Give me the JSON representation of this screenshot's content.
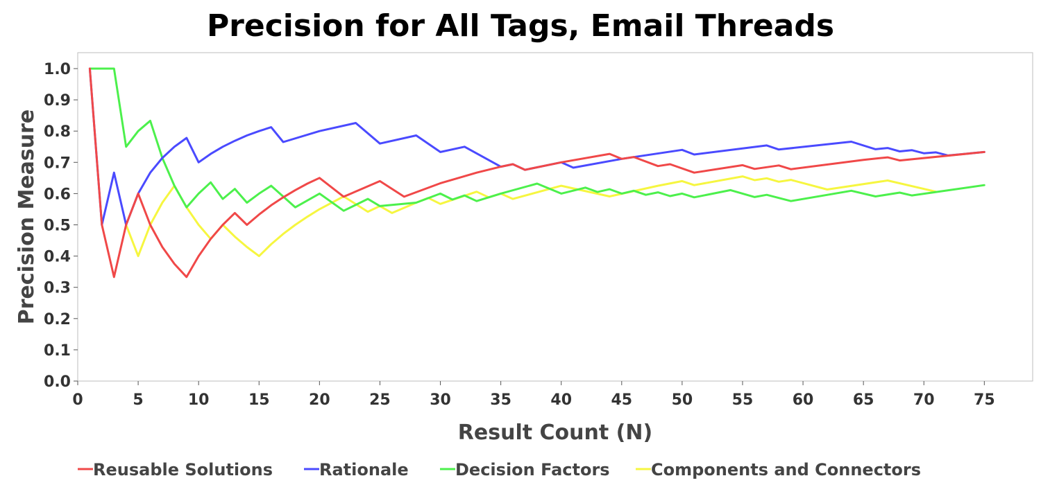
{
  "chart_data": {
    "type": "line",
    "title": "Precision for All Tags, Email Threads",
    "xlabel": "Result Count (N)",
    "ylabel": "Precision Measure",
    "xlim": [
      0,
      79
    ],
    "ylim": [
      0,
      1.0
    ],
    "xticks": [
      0,
      5,
      10,
      15,
      20,
      25,
      30,
      35,
      40,
      45,
      50,
      55,
      60,
      65,
      70,
      75
    ],
    "yticks": [
      0.0,
      0.1,
      0.2,
      0.3,
      0.4,
      0.5,
      0.6,
      0.7,
      0.8,
      0.9,
      1.0
    ],
    "grid": false,
    "legend_position": "bottom",
    "series": [
      {
        "name": "Reusable Solutions",
        "color": "#f04848",
        "points": [
          [
            1,
            1.0
          ],
          [
            2,
            0.5
          ],
          [
            3,
            0.333
          ],
          [
            4,
            0.5
          ],
          [
            5,
            0.6
          ],
          [
            6,
            0.5
          ],
          [
            7,
            0.429
          ],
          [
            8,
            0.375
          ],
          [
            9,
            0.333
          ],
          [
            10,
            0.4
          ],
          [
            11,
            0.455
          ],
          [
            12,
            0.5
          ],
          [
            13,
            0.538
          ],
          [
            14,
            0.5
          ],
          [
            15,
            0.533
          ],
          [
            16,
            0.5625
          ],
          [
            17,
            0.588
          ],
          [
            18,
            0.611
          ],
          [
            19,
            0.632
          ],
          [
            20,
            0.65
          ],
          [
            22,
            0.59
          ],
          [
            25,
            0.64
          ],
          [
            27,
            0.59
          ],
          [
            30,
            0.633
          ],
          [
            33,
            0.667
          ],
          [
            35,
            0.686
          ],
          [
            36,
            0.694
          ],
          [
            37,
            0.676
          ],
          [
            40,
            0.7
          ],
          [
            44,
            0.727
          ],
          [
            45,
            0.711
          ],
          [
            46,
            0.717
          ],
          [
            48,
            0.688
          ],
          [
            49,
            0.694
          ],
          [
            51,
            0.667
          ],
          [
            55,
            0.691
          ],
          [
            56,
            0.679
          ],
          [
            58,
            0.69
          ],
          [
            59,
            0.678
          ],
          [
            65,
            0.708
          ],
          [
            67,
            0.716
          ],
          [
            68,
            0.706
          ],
          [
            75,
            0.733
          ]
        ]
      },
      {
        "name": "Rationale",
        "color": "#4a4aff",
        "points": [
          [
            1,
            1.0
          ],
          [
            2,
            0.5
          ],
          [
            3,
            0.667
          ],
          [
            4,
            0.5
          ],
          [
            5,
            0.6
          ],
          [
            6,
            0.667
          ],
          [
            7,
            0.714
          ],
          [
            8,
            0.75
          ],
          [
            9,
            0.778
          ],
          [
            10,
            0.7
          ],
          [
            11,
            0.727
          ],
          [
            12,
            0.75
          ],
          [
            13,
            0.769
          ],
          [
            14,
            0.786
          ],
          [
            15,
            0.8
          ],
          [
            16,
            0.8125
          ],
          [
            17,
            0.765
          ],
          [
            20,
            0.8
          ],
          [
            23,
            0.826
          ],
          [
            25,
            0.76
          ],
          [
            28,
            0.786
          ],
          [
            30,
            0.733
          ],
          [
            32,
            0.75
          ],
          [
            35,
            0.686
          ],
          [
            36,
            0.694
          ],
          [
            37,
            0.676
          ],
          [
            40,
            0.7
          ],
          [
            41,
            0.683
          ],
          [
            45,
            0.711
          ],
          [
            50,
            0.74
          ],
          [
            51,
            0.725
          ],
          [
            57,
            0.754
          ],
          [
            58,
            0.741
          ],
          [
            64,
            0.766
          ],
          [
            66,
            0.742
          ],
          [
            67,
            0.746
          ],
          [
            68,
            0.735
          ],
          [
            69,
            0.739
          ],
          [
            70,
            0.729
          ],
          [
            71,
            0.732
          ],
          [
            72,
            0.722
          ],
          [
            75,
            0.733
          ]
        ]
      },
      {
        "name": "Decision Factors",
        "color": "#4cf04c",
        "points": [
          [
            1,
            1.0
          ],
          [
            2,
            1.0
          ],
          [
            3,
            1.0
          ],
          [
            4,
            0.75
          ],
          [
            5,
            0.8
          ],
          [
            6,
            0.833
          ],
          [
            7,
            0.714
          ],
          [
            8,
            0.625
          ],
          [
            9,
            0.556
          ],
          [
            10,
            0.6
          ],
          [
            11,
            0.636
          ],
          [
            12,
            0.583
          ],
          [
            13,
            0.615
          ],
          [
            14,
            0.571
          ],
          [
            15,
            0.6
          ],
          [
            16,
            0.625
          ],
          [
            18,
            0.556
          ],
          [
            20,
            0.6
          ],
          [
            22,
            0.545
          ],
          [
            24,
            0.583
          ],
          [
            25,
            0.56
          ],
          [
            28,
            0.571
          ],
          [
            30,
            0.6
          ],
          [
            31,
            0.581
          ],
          [
            32,
            0.594
          ],
          [
            33,
            0.576
          ],
          [
            35,
            0.6
          ],
          [
            38,
            0.632
          ],
          [
            40,
            0.6
          ],
          [
            42,
            0.619
          ],
          [
            43,
            0.605
          ],
          [
            44,
            0.614
          ],
          [
            45,
            0.6
          ],
          [
            46,
            0.609
          ],
          [
            47,
            0.596
          ],
          [
            48,
            0.604
          ],
          [
            49,
            0.592
          ],
          [
            50,
            0.6
          ],
          [
            51,
            0.588
          ],
          [
            54,
            0.611
          ],
          [
            56,
            0.589
          ],
          [
            57,
            0.596
          ],
          [
            59,
            0.576
          ],
          [
            64,
            0.609
          ],
          [
            66,
            0.591
          ],
          [
            68,
            0.603
          ],
          [
            69,
            0.594
          ],
          [
            75,
            0.627
          ]
        ]
      },
      {
        "name": "Components and Connectors",
        "color": "#f6f640",
        "points": [
          [
            4,
            0.5
          ],
          [
            5,
            0.4
          ],
          [
            6,
            0.5
          ],
          [
            7,
            0.571
          ],
          [
            8,
            0.625
          ],
          [
            9,
            0.556
          ],
          [
            10,
            0.5
          ],
          [
            11,
            0.455
          ],
          [
            12,
            0.5
          ],
          [
            13,
            0.462
          ],
          [
            14,
            0.429
          ],
          [
            15,
            0.4
          ],
          [
            16,
            0.438
          ],
          [
            17,
            0.471
          ],
          [
            18,
            0.5
          ],
          [
            19,
            0.526
          ],
          [
            20,
            0.55
          ],
          [
            22,
            0.591
          ],
          [
            24,
            0.542
          ],
          [
            25,
            0.56
          ],
          [
            26,
            0.538
          ],
          [
            28,
            0.571
          ],
          [
            29,
            0.586
          ],
          [
            30,
            0.567
          ],
          [
            33,
            0.606
          ],
          [
            34,
            0.588
          ],
          [
            35,
            0.6
          ],
          [
            36,
            0.583
          ],
          [
            40,
            0.625
          ],
          [
            44,
            0.591
          ],
          [
            48,
            0.625
          ],
          [
            50,
            0.64
          ],
          [
            51,
            0.627
          ],
          [
            55,
            0.655
          ],
          [
            56,
            0.643
          ],
          [
            57,
            0.649
          ],
          [
            58,
            0.638
          ],
          [
            59,
            0.644
          ],
          [
            62,
            0.613
          ],
          [
            67,
            0.642
          ],
          [
            71,
            0.606
          ]
        ]
      }
    ]
  }
}
